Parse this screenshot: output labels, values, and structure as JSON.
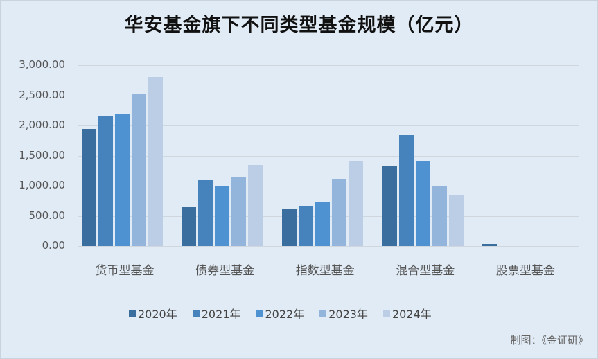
{
  "chart_data": {
    "type": "bar",
    "title": "华安基金旗下不同类型基金规模（亿元）",
    "xlabel": "",
    "ylabel": "",
    "ylim": [
      0,
      3000
    ],
    "yticks": [
      "0.00",
      "500.00",
      "1,000.00",
      "1,500.00",
      "2,000.00",
      "2,500.00",
      "3,000.00"
    ],
    "grid": true,
    "legend_position": "bottom",
    "categories": [
      "货币型基金",
      "债券型基金",
      "指数型基金",
      "混合型基金",
      "股票型基金"
    ],
    "series": [
      {
        "name": "2020年",
        "color": "#3a6e9e",
        "values": [
          1940,
          645,
          620,
          1320,
          30
        ]
      },
      {
        "name": "2021年",
        "color": "#4683bd",
        "values": [
          2150,
          1095,
          670,
          1840,
          0
        ]
      },
      {
        "name": "2022年",
        "color": "#4f92d2",
        "values": [
          2185,
          995,
          725,
          1405,
          0
        ]
      },
      {
        "name": "2023年",
        "color": "#93b5dc",
        "values": [
          2520,
          1140,
          1115,
          990,
          0
        ]
      },
      {
        "name": "2024年",
        "color": "#bccde6",
        "values": [
          2805,
          1345,
          1405,
          850,
          0
        ]
      }
    ]
  },
  "source_note": "制图：《金证研》"
}
